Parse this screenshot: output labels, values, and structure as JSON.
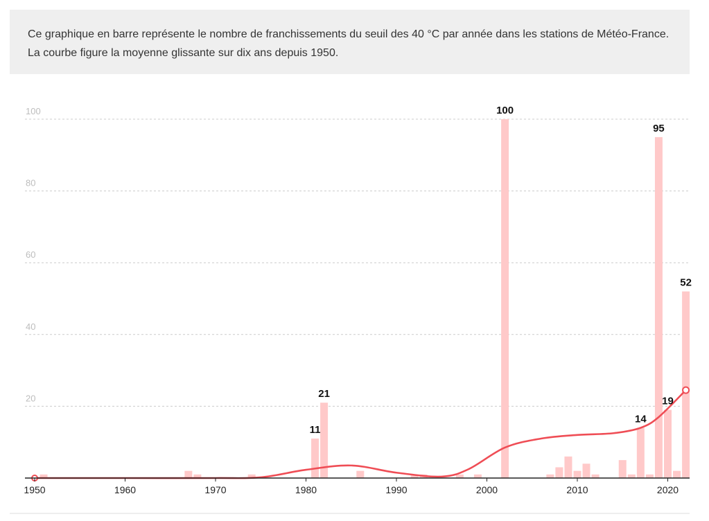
{
  "description": "Ce graphique en barre représente le nombre de franchissements du seuil des 40 °C par année dans les stations de Météo-France. La courbe figure la moyenne glissante sur dix ans depuis 1950.",
  "colors": {
    "bar": "#ffc9c9",
    "curve": "#ef4d55",
    "grid": "#cccccc",
    "axis": "#222222"
  },
  "chart_data": {
    "type": "bar",
    "title": "",
    "xlabel": "",
    "ylabel": "",
    "xlim": [
      1950,
      2022
    ],
    "ylim": [
      0,
      100
    ],
    "y_ticks": [
      20,
      40,
      60,
      80,
      100
    ],
    "x_ticks": [
      1950,
      1960,
      1970,
      1980,
      1990,
      2000,
      2010,
      2020
    ],
    "bars": [
      {
        "year": 1951,
        "value": 1
      },
      {
        "year": 1967,
        "value": 2
      },
      {
        "year": 1968,
        "value": 1
      },
      {
        "year": 1974,
        "value": 1
      },
      {
        "year": 1981,
        "value": 11,
        "label": "11"
      },
      {
        "year": 1982,
        "value": 21,
        "label": "21"
      },
      {
        "year": 1986,
        "value": 2
      },
      {
        "year": 1992,
        "value": 1
      },
      {
        "year": 1993,
        "value": 1
      },
      {
        "year": 1997,
        "value": 1
      },
      {
        "year": 1999,
        "value": 1
      },
      {
        "year": 2002,
        "value": 100,
        "label": "100"
      },
      {
        "year": 2007,
        "value": 1
      },
      {
        "year": 2008,
        "value": 3
      },
      {
        "year": 2009,
        "value": 6
      },
      {
        "year": 2010,
        "value": 2
      },
      {
        "year": 2011,
        "value": 4
      },
      {
        "year": 2012,
        "value": 1
      },
      {
        "year": 2015,
        "value": 5
      },
      {
        "year": 2016,
        "value": 1
      },
      {
        "year": 2017,
        "value": 14,
        "label": "14"
      },
      {
        "year": 2018,
        "value": 1
      },
      {
        "year": 2019,
        "value": 95,
        "label": "95"
      },
      {
        "year": 2020,
        "value": 19,
        "label": "19"
      },
      {
        "year": 2021,
        "value": 2
      },
      {
        "year": 2022,
        "value": 52,
        "label": "52"
      }
    ],
    "moving_average": {
      "name": "Moyenne glissante sur dix ans",
      "points": [
        [
          1950,
          0
        ],
        [
          1960,
          0
        ],
        [
          1970,
          0
        ],
        [
          1975,
          0.2
        ],
        [
          1980,
          2.3
        ],
        [
          1985,
          3.5
        ],
        [
          1990,
          1.5
        ],
        [
          1995,
          0.4
        ],
        [
          1998,
          2.5
        ],
        [
          2002,
          8.5
        ],
        [
          2006,
          11
        ],
        [
          2010,
          12
        ],
        [
          2014,
          12.5
        ],
        [
          2017,
          14
        ],
        [
          2019,
          17
        ],
        [
          2022,
          24.5
        ]
      ],
      "start": {
        "year": 1950,
        "value": 0
      },
      "end": {
        "year": 2022,
        "value": 24.5
      }
    }
  }
}
